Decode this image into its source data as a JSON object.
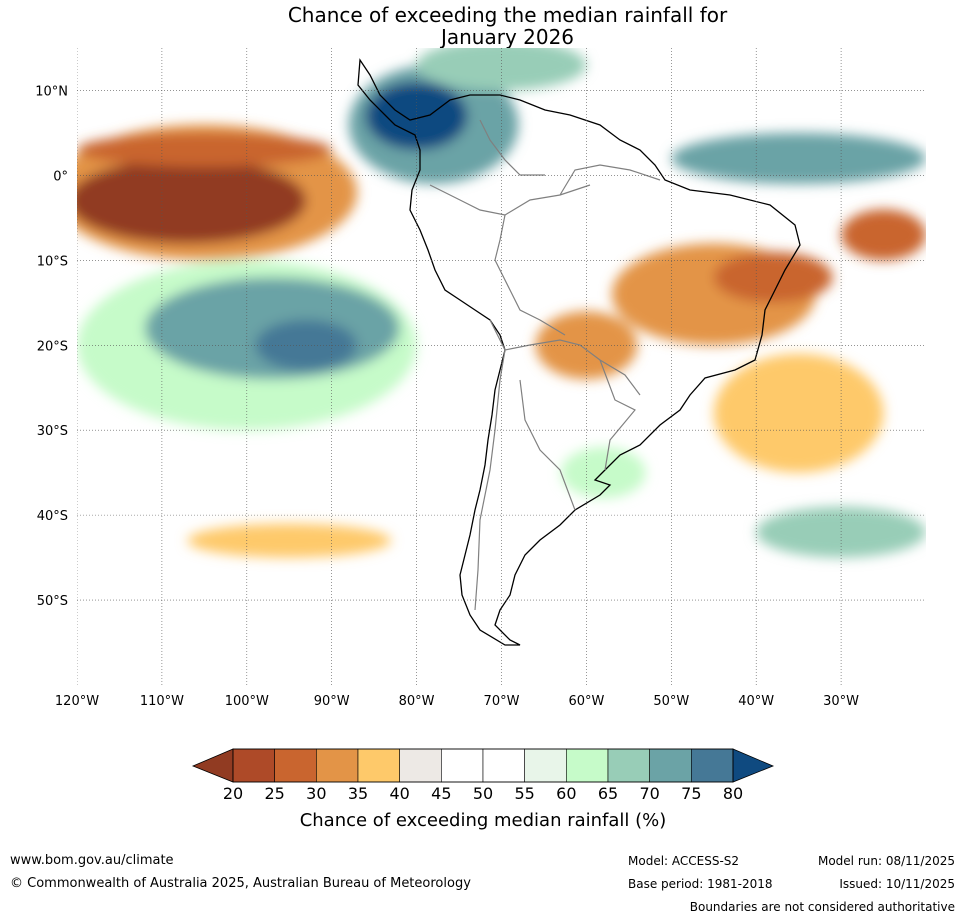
{
  "title_line1": "Chance of exceeding the median rainfall for",
  "title_line2": "January 2026",
  "map": {
    "lon_range": [
      -120,
      -20
    ],
    "lat_range": [
      -60,
      15
    ],
    "lat_ticks": [
      {
        "value": 10,
        "label": "10°N"
      },
      {
        "value": 0,
        "label": "0°"
      },
      {
        "value": -10,
        "label": "10°S"
      },
      {
        "value": -20,
        "label": "20°S"
      },
      {
        "value": -30,
        "label": "30°S"
      },
      {
        "value": -40,
        "label": "40°S"
      },
      {
        "value": -50,
        "label": "50°S"
      }
    ],
    "lon_ticks": [
      {
        "value": -120,
        "label": "120°W"
      },
      {
        "value": -110,
        "label": "110°W"
      },
      {
        "value": -100,
        "label": "100°W"
      },
      {
        "value": -90,
        "label": "90°W"
      },
      {
        "value": -80,
        "label": "80°W"
      },
      {
        "value": -70,
        "label": "70°W"
      },
      {
        "value": -60,
        "label": "60°W"
      },
      {
        "value": -50,
        "label": "50°W"
      },
      {
        "value": -40,
        "label": "40°W"
      },
      {
        "value": -30,
        "label": "30°W"
      }
    ],
    "regions": [
      {
        "id": "pacific-equatorial-dry",
        "lon": -107,
        "lat": -3,
        "rx_deg": 14,
        "ry_deg": 5,
        "level": 20
      },
      {
        "id": "pacific-equatorial-dry-halo",
        "lon": -105,
        "lat": -2,
        "rx_deg": 18,
        "ry_deg": 8,
        "level": 30
      },
      {
        "id": "pacific-north-band-dry",
        "lon": -105,
        "lat": 3,
        "rx_deg": 15,
        "ry_deg": 2,
        "level": 25
      },
      {
        "id": "colombia-wet-core",
        "lon": -80,
        "lat": 7,
        "rx_deg": 6,
        "ry_deg": 4,
        "level": 80
      },
      {
        "id": "colombia-wet-halo",
        "lon": -78,
        "lat": 6,
        "rx_deg": 10,
        "ry_deg": 7,
        "level": 70
      },
      {
        "id": "caribbean-wet",
        "lon": -70,
        "lat": 13,
        "rx_deg": 10,
        "ry_deg": 3,
        "level": 65
      },
      {
        "id": "south-pacific-wet",
        "lon": -97,
        "lat": -18,
        "rx_deg": 15,
        "ry_deg": 6,
        "level": 70
      },
      {
        "id": "south-pacific-wet-core",
        "lon": -93,
        "lat": -20,
        "rx_deg": 6,
        "ry_deg": 3,
        "level": 75
      },
      {
        "id": "south-pacific-wet-halo",
        "lon": -100,
        "lat": -20,
        "rx_deg": 20,
        "ry_deg": 10,
        "level": 60
      },
      {
        "id": "atlantic-equatorial-wet",
        "lon": -35,
        "lat": 2,
        "rx_deg": 15,
        "ry_deg": 3,
        "level": 70
      },
      {
        "id": "brazil-dry",
        "lon": -45,
        "lat": -14,
        "rx_deg": 12,
        "ry_deg": 6,
        "level": 30
      },
      {
        "id": "brazil-dry-core",
        "lon": -38,
        "lat": -12,
        "rx_deg": 7,
        "ry_deg": 3,
        "level": 25
      },
      {
        "id": "atlantic-south-dry",
        "lon": -35,
        "lat": -28,
        "rx_deg": 10,
        "ry_deg": 7,
        "level": 35
      },
      {
        "id": "paraguay-dry",
        "lon": -60,
        "lat": -20,
        "rx_deg": 6,
        "ry_deg": 4,
        "level": 30
      },
      {
        "id": "atlantic-east-dry",
        "lon": -25,
        "lat": -7,
        "rx_deg": 5,
        "ry_deg": 3,
        "level": 25
      },
      {
        "id": "south-pacific-40s-dry",
        "lon": -95,
        "lat": -43,
        "rx_deg": 12,
        "ry_deg": 2,
        "level": 35
      },
      {
        "id": "south-atlantic-wet",
        "lon": -30,
        "lat": -42,
        "rx_deg": 10,
        "ry_deg": 3,
        "level": 65
      },
      {
        "id": "argentine-sea-wet",
        "lon": -58,
        "lat": -35,
        "rx_deg": 5,
        "ry_deg": 3,
        "level": 60
      }
    ]
  },
  "colorbar": {
    "title": "Chance of exceeding median rainfall (%)",
    "ticks": [
      "20",
      "25",
      "30",
      "35",
      "40",
      "45",
      "50",
      "55",
      "60",
      "65",
      "70",
      "75",
      "80"
    ],
    "levels": [
      {
        "from": 20,
        "to": 25,
        "color": "#ae4a28"
      },
      {
        "from": 25,
        "to": 30,
        "color": "#c9652f"
      },
      {
        "from": 30,
        "to": 35,
        "color": "#e39447"
      },
      {
        "from": 35,
        "to": 40,
        "color": "#fec96a"
      },
      {
        "from": 40,
        "to": 45,
        "color": "#ede9e5"
      },
      {
        "from": 45,
        "to": 50,
        "color": "#ffffff"
      },
      {
        "from": 50,
        "to": 55,
        "color": "#ffffff"
      },
      {
        "from": 55,
        "to": 60,
        "color": "#e8f5e9"
      },
      {
        "from": 60,
        "to": 65,
        "color": "#c6fbc9"
      },
      {
        "from": 65,
        "to": 70,
        "color": "#98cdb7"
      },
      {
        "from": 70,
        "to": 75,
        "color": "#6ba3a6"
      },
      {
        "from": 75,
        "to": 80,
        "color": "#457896"
      }
    ],
    "low_extend_color": "#913b22",
    "high_extend_color": "#0f4a80"
  },
  "footer": {
    "website": "www.bom.gov.au/climate",
    "copyright": "© Commonwealth of Australia 2025, Australian Bureau of Meteorology",
    "model": "Model: ACCESS-S2",
    "base_period": "Base period: 1981-2018",
    "model_run": "Model run: 08/11/2025",
    "issued": "Issued: 10/11/2025",
    "disclaimer": "Boundaries are not considered authoritative"
  },
  "colors": {
    "ocean_background": "#ffffff",
    "coastline": "#000000",
    "border": "#808080",
    "grid": "#555555"
  }
}
